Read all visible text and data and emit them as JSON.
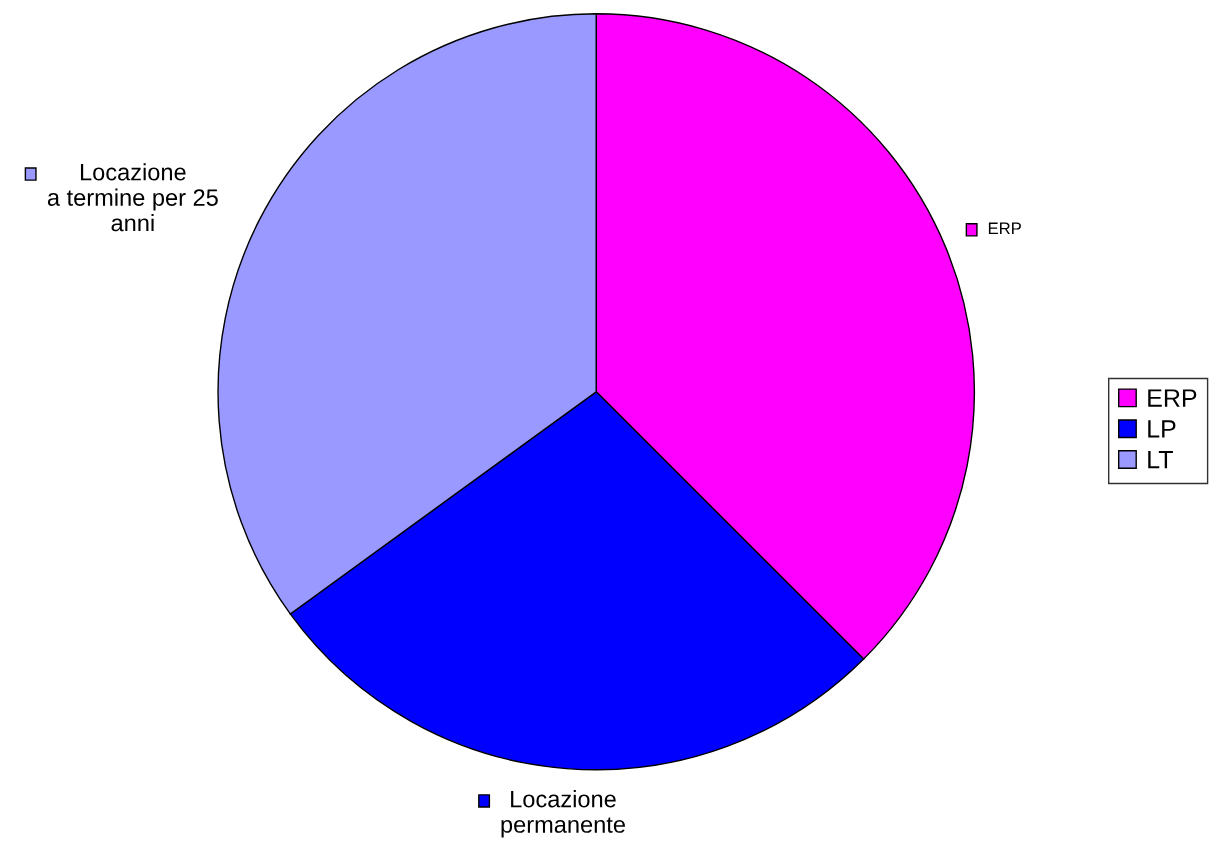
{
  "chart_data": {
    "type": "pie",
    "categories": [
      "ERP",
      "LP",
      "LT"
    ],
    "values": [
      37.5,
      27.5,
      35
    ],
    "colors": [
      "#ff00ff",
      "#0000ff",
      "#9999ff"
    ],
    "annotations": [
      "ERP",
      "Locazione\npermanente",
      "Locazione\na termine per 25\nanni"
    ],
    "legend": "right"
  }
}
